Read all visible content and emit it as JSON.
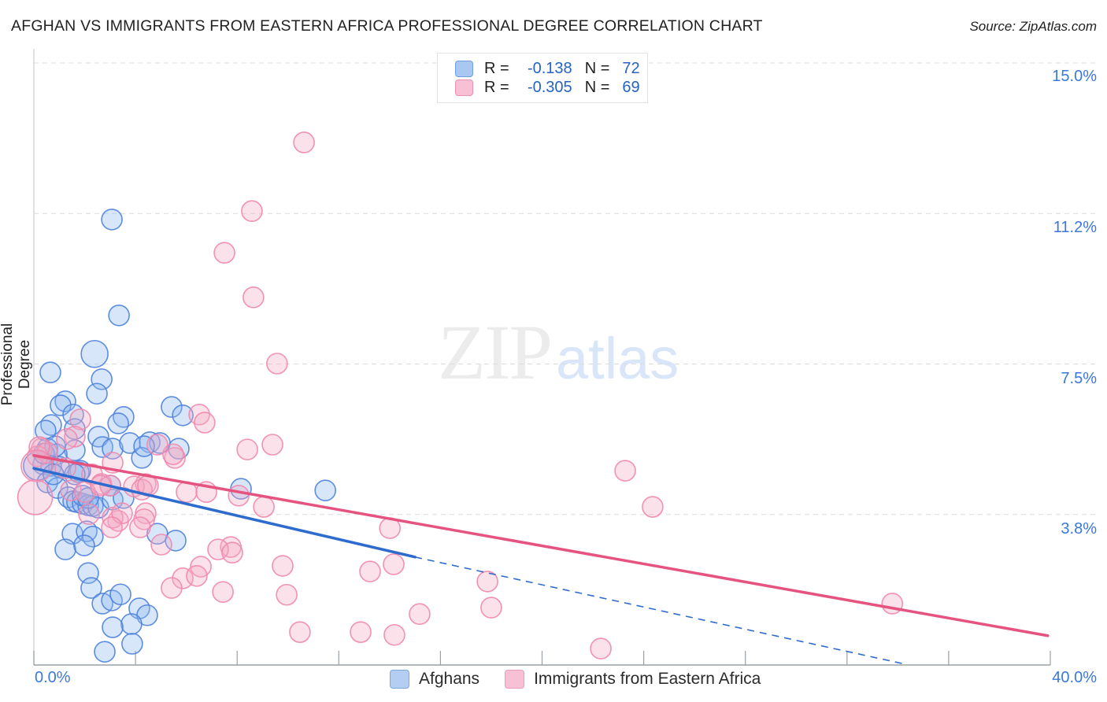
{
  "header": {
    "title": "AFGHAN VS IMMIGRANTS FROM EASTERN AFRICA PROFESSIONAL DEGREE CORRELATION CHART",
    "source": "Source: ZipAtlas.com"
  },
  "watermark": {
    "zip": "ZIP",
    "atlas": "atlas"
  },
  "y_axis": {
    "title": "Professional Degree"
  },
  "x_axis": {
    "min_label": "0.0%",
    "max_label": "40.0%"
  },
  "stats_legend": {
    "rows": [
      {
        "series": "Afghans",
        "r_label": "R =",
        "r_value": "-0.138",
        "n_label": "N =",
        "n_value": "72"
      },
      {
        "series": "Immigrants from Eastern Africa",
        "r_label": "R =",
        "r_value": "-0.305",
        "n_label": "N =",
        "n_value": "69"
      }
    ]
  },
  "bottom_legend": {
    "items": [
      {
        "label": "Afghans"
      },
      {
        "label": "Immigrants from Eastern Africa"
      }
    ]
  },
  "chart_data": {
    "type": "scatter",
    "title": "AFGHAN VS IMMIGRANTS FROM EASTERN AFRICA PROFESSIONAL DEGREE CORRELATION CHART",
    "xlabel": "",
    "ylabel": "Professional Degree",
    "xlim": [
      0,
      40
    ],
    "ylim": [
      0,
      15.35
    ],
    "x_tick_step_pct": 4,
    "grid": "dashed-horizontal",
    "legend_position": "bottom-center",
    "y_gridlines": [
      {
        "value": 3.75,
        "label": "3.8%"
      },
      {
        "value": 7.5,
        "label": "7.5%"
      },
      {
        "value": 11.25,
        "label": "11.2%"
      },
      {
        "value": 15,
        "label": "15.0%"
      }
    ],
    "series": [
      {
        "name": "Afghans",
        "R": -0.138,
        "N": 72,
        "stroke": "#4d82dd",
        "fill": "#8fb8ee",
        "points": [
          [
            3.07,
            11.1
          ],
          [
            3.35,
            8.71
          ],
          [
            2.39,
            7.75,
            17
          ],
          [
            0.65,
            7.29
          ],
          [
            2.67,
            7.12
          ],
          [
            2.48,
            6.76
          ],
          [
            1.24,
            6.57
          ],
          [
            1.05,
            6.47
          ],
          [
            1.55,
            6.24
          ],
          [
            3.53,
            6.18
          ],
          [
            3.32,
            6.02
          ],
          [
            0.68,
            5.98
          ],
          [
            0.46,
            5.84
          ],
          [
            2.54,
            5.69
          ],
          [
            5.42,
            6.43
          ],
          [
            5.86,
            6.22
          ],
          [
            0.53,
            5.39
          ],
          [
            1.61,
            5.35
          ],
          [
            0.9,
            5.25
          ],
          [
            0.37,
            5.0
          ],
          [
            0.68,
            4.96
          ],
          [
            0.99,
            4.94
          ],
          [
            0.15,
            4.96,
            18
          ],
          [
            1.83,
            4.84
          ],
          [
            2.7,
            5.43
          ],
          [
            3.1,
            5.39
          ],
          [
            3.78,
            5.53
          ],
          [
            4.56,
            5.55
          ],
          [
            4.96,
            5.53
          ],
          [
            4.25,
            5.16
          ],
          [
            1.77,
            4.8
          ],
          [
            0.53,
            4.55
          ],
          [
            0.93,
            4.41
          ],
          [
            1.36,
            4.18
          ],
          [
            1.55,
            4.08
          ],
          [
            1.7,
            4.06
          ],
          [
            1.92,
            4.02
          ],
          [
            2.14,
            3.98
          ],
          [
            2.32,
            3.96
          ],
          [
            2.54,
            3.92
          ],
          [
            3.1,
            4.12
          ],
          [
            3.53,
            4.16
          ],
          [
            3.01,
            4.47
          ],
          [
            8.15,
            4.39
          ],
          [
            11.47,
            4.35
          ],
          [
            5.7,
            5.39
          ],
          [
            4.34,
            5.45
          ],
          [
            0.4,
            5.27
          ],
          [
            0.77,
            4.75
          ],
          [
            1.61,
            4.75
          ],
          [
            1.92,
            4.22
          ],
          [
            2.14,
            4.16
          ],
          [
            0.84,
            5.45
          ],
          [
            1.52,
            3.27
          ],
          [
            2.08,
            3.33
          ],
          [
            2.32,
            3.2
          ],
          [
            1.24,
            2.88
          ],
          [
            1.98,
            2.98
          ],
          [
            4.86,
            3.27
          ],
          [
            5.58,
            3.1
          ],
          [
            2.14,
            2.29
          ],
          [
            2.26,
            1.92
          ],
          [
            2.7,
            1.53
          ],
          [
            3.07,
            1.61
          ],
          [
            3.41,
            1.76
          ],
          [
            4.15,
            1.41
          ],
          [
            4.46,
            1.24
          ],
          [
            3.84,
            1.02
          ],
          [
            3.1,
            0.94
          ],
          [
            3.87,
            0.53
          ],
          [
            2.79,
            0.33
          ],
          [
            1.61,
            5.88
          ]
        ]
      },
      {
        "name": "Immigrants from Eastern Africa",
        "R": -0.305,
        "N": 69,
        "stroke": "#ef87ad",
        "fill": "#f4a8c4",
        "points": [
          [
            10.63,
            13.02
          ],
          [
            8.58,
            11.31
          ],
          [
            7.5,
            10.27
          ],
          [
            8.64,
            9.16
          ],
          [
            9.57,
            7.51
          ],
          [
            6.51,
            6.24
          ],
          [
            6.72,
            6.04
          ],
          [
            8.4,
            5.37
          ],
          [
            9.39,
            5.49
          ],
          [
            8.06,
            4.22
          ],
          [
            9.05,
            3.94
          ],
          [
            7.75,
            2.94
          ],
          [
            14.01,
            3.41
          ],
          [
            1.83,
            6.12
          ],
          [
            1.61,
            5.69
          ],
          [
            1.3,
            5.63
          ],
          [
            0.31,
            5.39
          ],
          [
            0.53,
            5.29
          ],
          [
            0.15,
            5.2
          ],
          [
            2.29,
            4.75
          ],
          [
            2.66,
            4.51
          ],
          [
            3.01,
            4.47
          ],
          [
            1.46,
            4.35
          ],
          [
            4.4,
            4.51
          ],
          [
            5.55,
            5.16
          ],
          [
            5.48,
            5.25
          ],
          [
            0.22,
            5.43
          ],
          [
            0.12,
            4.96,
            20
          ],
          [
            1.24,
            4.9
          ],
          [
            0.05,
            4.18,
            22
          ],
          [
            2.01,
            4.31
          ],
          [
            2.63,
            4.47
          ],
          [
            3.1,
            5.04
          ],
          [
            3.94,
            4.45
          ],
          [
            4.25,
            4.37
          ],
          [
            4.49,
            4.47
          ],
          [
            4.86,
            5.49
          ],
          [
            6.01,
            4.31
          ],
          [
            6.79,
            4.31
          ],
          [
            4.4,
            3.78
          ],
          [
            3.32,
            3.59
          ],
          [
            3.1,
            3.67
          ],
          [
            2.17,
            3.76
          ],
          [
            3.47,
            3.78
          ],
          [
            3.07,
            3.43
          ],
          [
            4.34,
            3.63
          ],
          [
            4.18,
            3.43
          ],
          [
            5.02,
            3.0
          ],
          [
            7.25,
            2.88
          ],
          [
            7.81,
            2.8
          ],
          [
            6.57,
            2.45
          ],
          [
            5.86,
            2.16
          ],
          [
            6.41,
            2.22
          ],
          [
            5.42,
            1.92
          ],
          [
            7.44,
            1.82
          ],
          [
            9.79,
            2.47
          ],
          [
            9.95,
            1.75
          ],
          [
            13.23,
            2.33
          ],
          [
            14.16,
            2.51
          ],
          [
            10.47,
            0.82
          ],
          [
            12.86,
            0.82
          ],
          [
            14.19,
            0.75
          ],
          [
            15.18,
            1.27
          ],
          [
            17.85,
            2.08
          ],
          [
            18.0,
            1.43
          ],
          [
            22.31,
            0.41
          ],
          [
            23.27,
            4.84
          ],
          [
            24.35,
            3.94
          ],
          [
            33.78,
            1.53
          ]
        ]
      }
    ],
    "trend_lines": [
      {
        "series": "Afghans",
        "color": "#2e6bce",
        "solid": [
          [
            0,
            4.9
          ],
          [
            15.0,
            2.69
          ]
        ],
        "dashed": [
          [
            15.0,
            2.69
          ],
          [
            34.3,
            0.02
          ]
        ]
      },
      {
        "series": "Immigrants from Eastern Africa",
        "color": "#e5537f",
        "solid": [
          [
            0,
            5.22
          ],
          [
            39.9,
            0.73
          ]
        ]
      }
    ]
  }
}
